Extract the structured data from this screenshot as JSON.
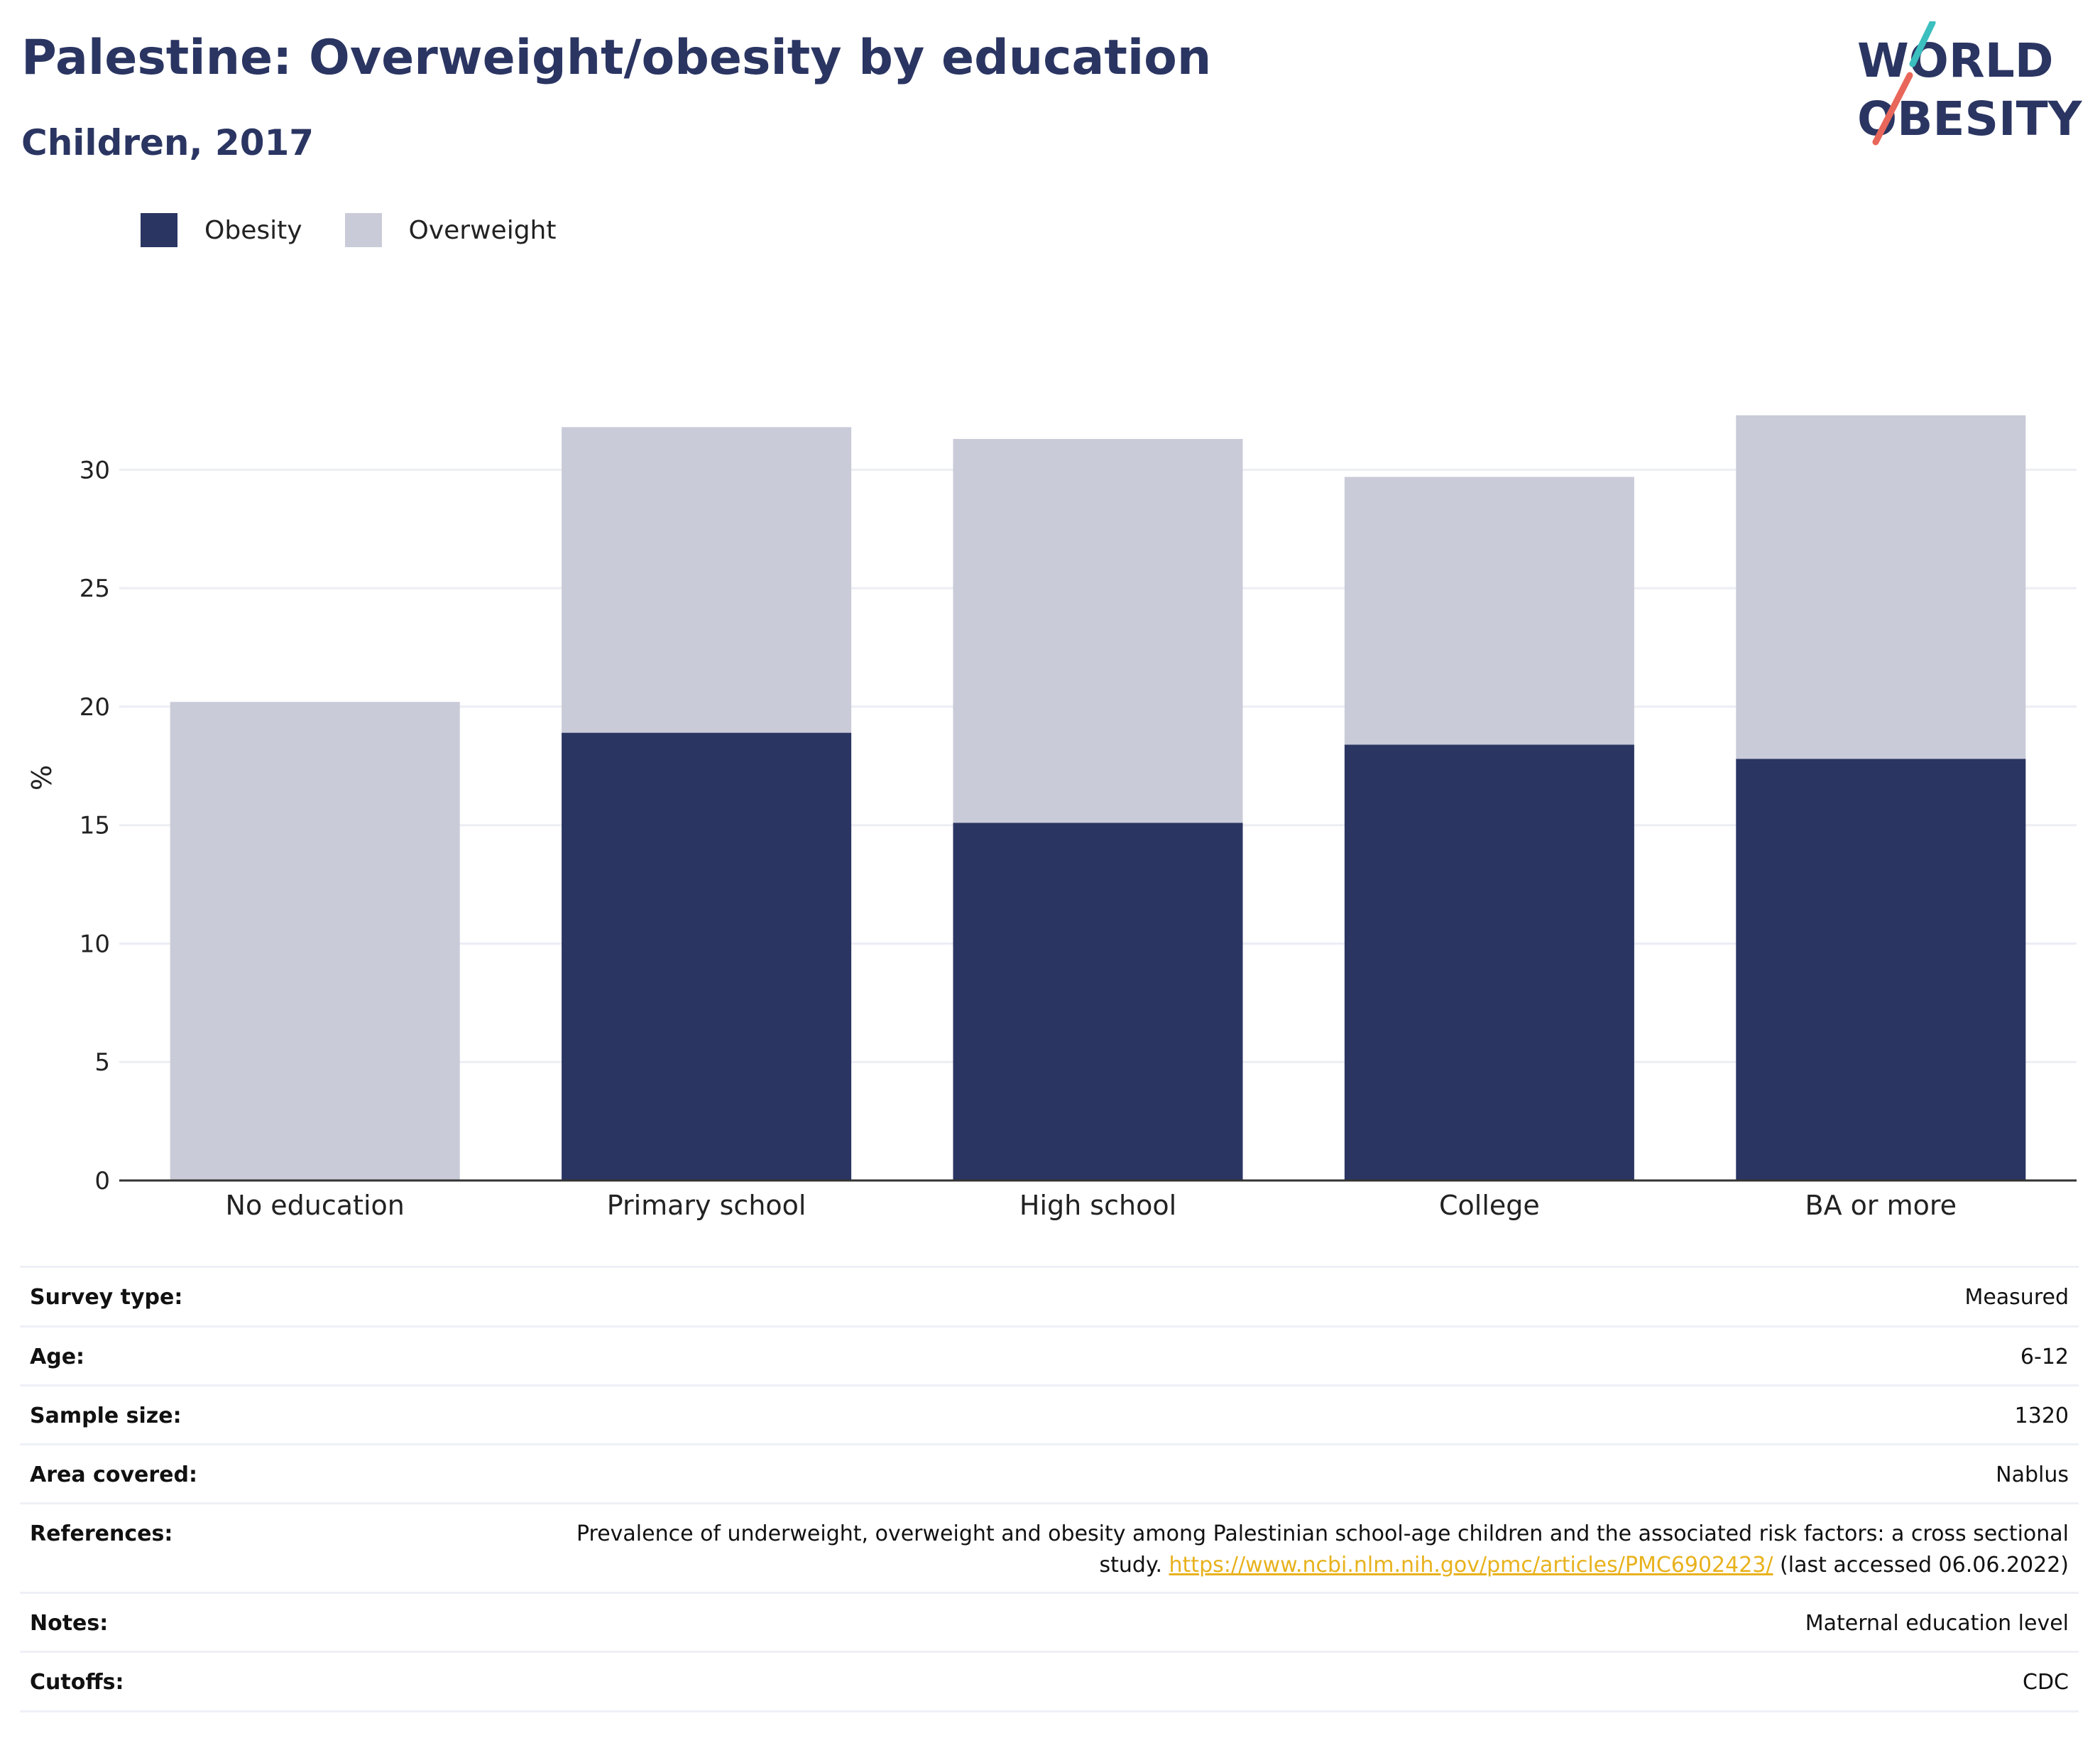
{
  "header": {
    "title": "Palestine: Overweight/obesity by education",
    "subtitle": "Children, 2017"
  },
  "logo": {
    "line1": "WORLD",
    "line2": "OBESITY",
    "accent_teal": "#3bbfbf",
    "accent_coral": "#e8675a",
    "text_color": "#2b3562"
  },
  "colors": {
    "obesity": "#2b3562",
    "overweight": "#c9cbd8",
    "title": "#2b3562",
    "link": "#e8b21d"
  },
  "legend": [
    {
      "label": "Obesity",
      "color": "#2b3562"
    },
    {
      "label": "Overweight",
      "color": "#c9cbd8"
    }
  ],
  "chart_data": {
    "type": "bar",
    "stacked": true,
    "categories": [
      "No education",
      "Primary school",
      "High school",
      "College",
      "BA or more"
    ],
    "series": [
      {
        "name": "Obesity",
        "color": "#2b3562",
        "values": [
          0,
          18.9,
          15.1,
          18.4,
          17.8
        ]
      },
      {
        "name": "Overweight",
        "color": "#c9cbd8",
        "values": [
          20.2,
          12.9,
          16.2,
          11.3,
          14.5
        ]
      }
    ],
    "ylabel": "%",
    "ylim": [
      0,
      32.5
    ],
    "yticks": [
      0,
      5,
      10,
      15,
      20,
      25,
      30
    ],
    "grid": true,
    "legend_position": "top-left"
  },
  "meta": {
    "survey_type": {
      "label": "Survey type:",
      "value": "Measured"
    },
    "age": {
      "label": "Age:",
      "value": "6-12"
    },
    "sample_size": {
      "label": "Sample size:",
      "value": "1320"
    },
    "area": {
      "label": "Area covered:",
      "value": "Nablus"
    },
    "references": {
      "label": "References:",
      "text": "Prevalence of underweight, overweight and obesity among Palestinian school-age children and the associated risk factors: a cross sectional study.",
      "link": "https://www.ncbi.nlm.nih.gov/pmc/articles/PMC6902423/",
      "suffix": "(last accessed 06.06.2022)"
    },
    "notes": {
      "label": "Notes:",
      "value": "Maternal education level"
    },
    "cutoffs": {
      "label": "Cutoffs:",
      "value": "CDC"
    }
  }
}
